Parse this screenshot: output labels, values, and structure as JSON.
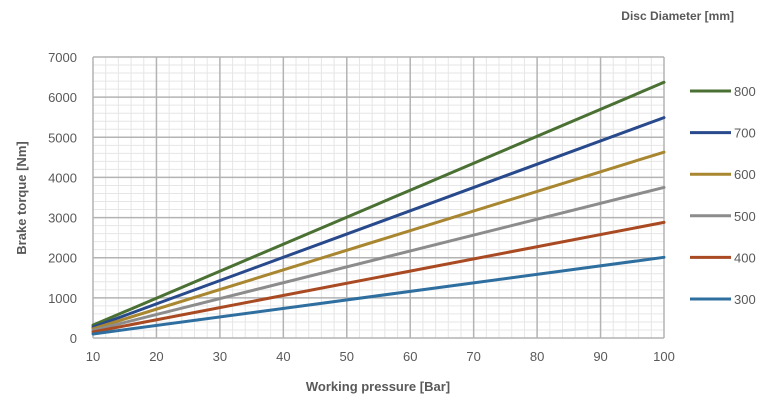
{
  "chart_data": {
    "type": "line",
    "title": "",
    "xlabel": "Working pressure [Bar]",
    "ylabel": "Brake torque [Nm]",
    "xlim": [
      10,
      100
    ],
    "ylim": [
      0,
      7000
    ],
    "x_ticks": [
      10,
      20,
      30,
      40,
      50,
      60,
      70,
      80,
      90,
      100
    ],
    "y_ticks": [
      0,
      1000,
      2000,
      3000,
      4000,
      5000,
      6000,
      7000
    ],
    "grid": true,
    "legend_title": "Disc Diameter [mm]",
    "legend_position": "right",
    "x": [
      10,
      100
    ],
    "series": [
      {
        "name": "800",
        "color": "#4a7133",
        "values": [
          320,
          6370
        ]
      },
      {
        "name": "700",
        "color": "#284a8c",
        "values": [
          270,
          5490
        ]
      },
      {
        "name": "600",
        "color": "#a98731",
        "values": [
          230,
          4630
        ]
      },
      {
        "name": "500",
        "color": "#8c8c8c",
        "values": [
          190,
          3750
        ]
      },
      {
        "name": "400",
        "color": "#a94a22",
        "values": [
          150,
          2880
        ]
      },
      {
        "name": "300",
        "color": "#2f6fa0",
        "values": [
          100,
          2010
        ]
      }
    ]
  }
}
